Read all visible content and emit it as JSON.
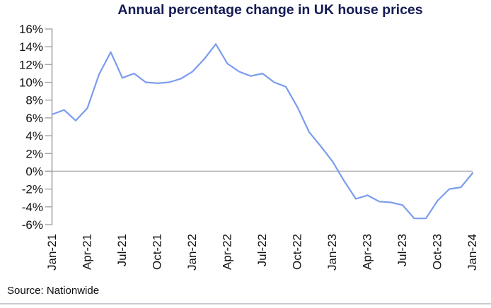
{
  "title": {
    "text": "Annual percentage change in UK house prices"
  },
  "source": {
    "text": "Source: Nationwide"
  },
  "colors": {
    "background": "#ffffff",
    "title": "#141b56",
    "line": "#7a9cee",
    "axis": "#a6a6a6",
    "zero_line": "#b5b5b5",
    "tick_label": "#111111",
    "bottom_rule": "#c7ccd2"
  },
  "chart_data": {
    "type": "line",
    "title": "Annual percentage change in UK house prices",
    "xlabel": "",
    "ylabel": "",
    "x": [
      "Jan-21",
      "Feb-21",
      "Mar-21",
      "Apr-21",
      "May-21",
      "Jun-21",
      "Jul-21",
      "Aug-21",
      "Sep-21",
      "Oct-21",
      "Nov-21",
      "Dec-21",
      "Jan-22",
      "Feb-22",
      "Mar-22",
      "Apr-22",
      "May-22",
      "Jun-22",
      "Jul-22",
      "Aug-22",
      "Sep-22",
      "Oct-22",
      "Nov-22",
      "Dec-22",
      "Jan-23",
      "Feb-23",
      "Mar-23",
      "Apr-23",
      "May-23",
      "Jun-23",
      "Jul-23",
      "Aug-23",
      "Sep-23",
      "Oct-23",
      "Nov-23",
      "Dec-23",
      "Jan-24"
    ],
    "values": [
      6.4,
      6.9,
      5.7,
      7.1,
      10.9,
      13.4,
      10.5,
      11.0,
      10.0,
      9.9,
      10.0,
      10.4,
      11.2,
      12.6,
      14.3,
      12.1,
      11.2,
      10.7,
      11.0,
      10.0,
      9.5,
      7.2,
      4.4,
      2.8,
      1.1,
      -1.1,
      -3.1,
      -2.7,
      -3.4,
      -3.5,
      -3.8,
      -5.3,
      -5.3,
      -3.3,
      -2.0,
      -1.8,
      -0.2
    ],
    "x_tick_labels": [
      "Jan-21",
      "Apr-21",
      "Jul-21",
      "Oct-21",
      "Jan-22",
      "Apr-22",
      "Jul-22",
      "Oct-22",
      "Jan-23",
      "Apr-23",
      "Jul-23",
      "Oct-23",
      "Jan-24"
    ],
    "x_tick_interval": 3,
    "ylim": [
      -6,
      16
    ],
    "ytick_step": 2,
    "ytick_suffix": "%",
    "grid": "horizontal zero line only",
    "legend": "none",
    "source": "Nationwide"
  }
}
